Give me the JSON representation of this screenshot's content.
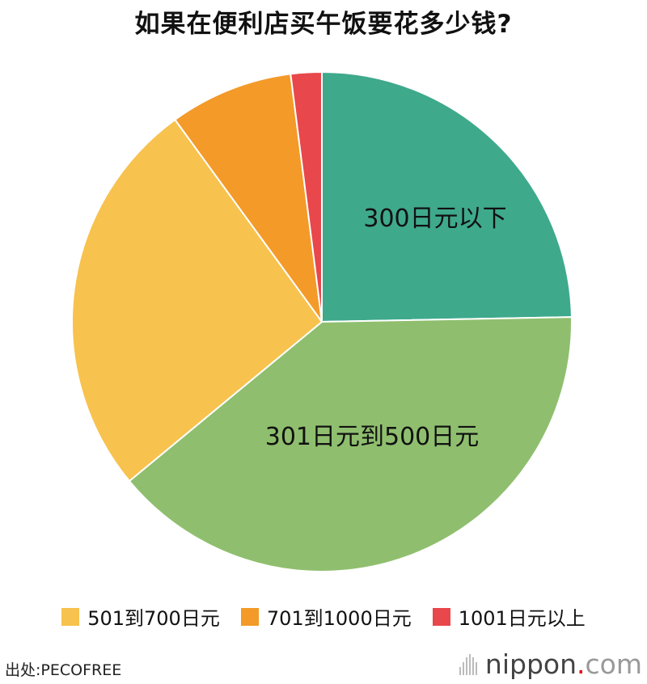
{
  "title": "如果在便利店买午饭要花多少钱?",
  "colors": {
    "under300": "#3fa98c",
    "r301_500": "#8fbf6e",
    "r501_700": "#f7c24e",
    "r701_1000": "#f39a29",
    "over1001": "#e8474b"
  },
  "chart_data": {
    "type": "pie",
    "title": "如果在便利店买午饭要花多少钱?",
    "unit": "%",
    "slices": [
      {
        "label": "300日元以下",
        "value": 24.7,
        "color": "#3fa98c",
        "label_shown_on_slice": true
      },
      {
        "label": "301日元到500日元",
        "value": 39.3,
        "color": "#8fbf6e",
        "label_shown_on_slice": true
      },
      {
        "label": "501到700日元",
        "value": 26.0,
        "color": "#f7c24e",
        "label_shown_on_slice": false
      },
      {
        "label": "701到1000日元",
        "value": 8.0,
        "color": "#f39a29",
        "label_shown_on_slice": false
      },
      {
        "label": "1001日元以上",
        "value": 2.0,
        "color": "#e8474b",
        "label_shown_on_slice": false
      }
    ],
    "start_angle": "12 o'clock",
    "direction": "clockwise",
    "legend": {
      "placement": "bottom",
      "items": [
        "501到700日元",
        "701到1000日元",
        "1001日元以上"
      ]
    }
  },
  "legend": [
    {
      "label": "501到700日元",
      "color": "#f7c24e"
    },
    {
      "label": "701到1000日元",
      "color": "#f39a29"
    },
    {
      "label": "1001日元以上",
      "color": "#e8474b"
    }
  ],
  "footer": {
    "source": "出处:PECOFREE",
    "logo_name": "nippon",
    "logo_dot": ".",
    "logo_suffix": "com"
  }
}
